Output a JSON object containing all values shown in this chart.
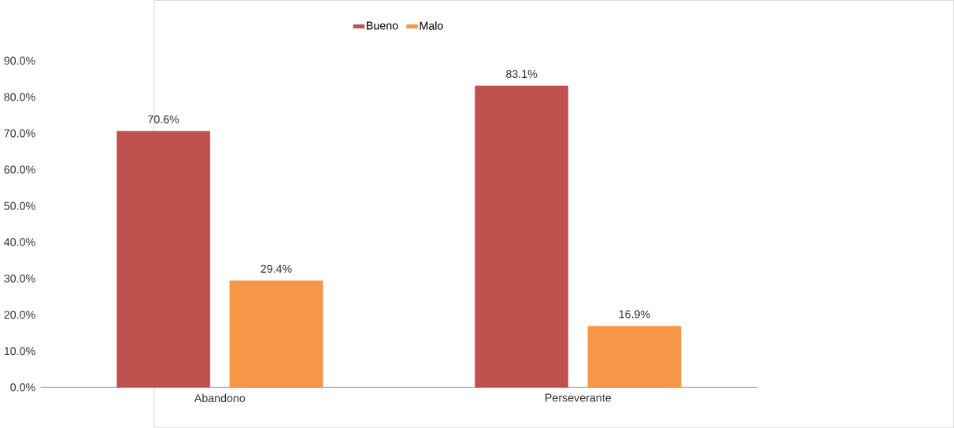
{
  "chart_data": {
    "type": "bar",
    "categories": [
      "Abandono",
      "Perseverante"
    ],
    "series": [
      {
        "name": "Bueno",
        "color": "#c0504d",
        "values": [
          70.6,
          83.1
        ],
        "value_labels": [
          "70.6%",
          "83.1%"
        ]
      },
      {
        "name": "Malo",
        "color": "#f79646",
        "values": [
          29.4,
          16.9
        ],
        "value_labels": [
          "29.4%",
          "16.9%"
        ]
      }
    ],
    "ylim": [
      0,
      90
    ],
    "yticks": [
      {
        "value": 0,
        "label": "0.0%"
      },
      {
        "value": 10,
        "label": "10.0%"
      },
      {
        "value": 20,
        "label": "20.0%"
      },
      {
        "value": 30,
        "label": "30.0%"
      },
      {
        "value": 40,
        "label": "40.0%"
      },
      {
        "value": 50,
        "label": "50.0%"
      },
      {
        "value": 60,
        "label": "60.0%"
      },
      {
        "value": 70,
        "label": "70.0%"
      },
      {
        "value": 80,
        "label": "80.0%"
      },
      {
        "value": 90,
        "label": "90.0%"
      }
    ],
    "grid": false,
    "legend": "top"
  }
}
